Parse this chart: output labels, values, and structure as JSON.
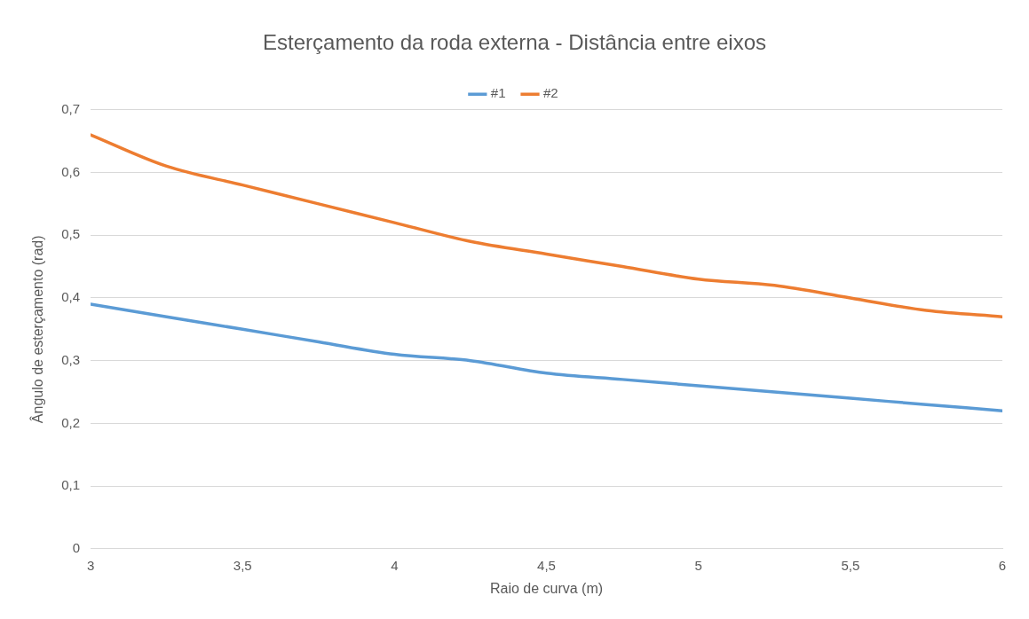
{
  "chart_data": {
    "type": "line",
    "title": "Esterçamento da roda externa - Distância entre eixos",
    "xlabel": "Raio de curva (m)",
    "ylabel": "Ângulo de esterçamento (rad)",
    "x": [
      3,
      3.25,
      3.5,
      3.75,
      4,
      4.25,
      4.5,
      4.75,
      5,
      5.25,
      5.5,
      5.75,
      6
    ],
    "series": [
      {
        "name": "#1",
        "color": "#5b9bd5",
        "values": [
          0.39,
          0.37,
          0.35,
          0.33,
          0.31,
          0.3,
          0.28,
          0.27,
          0.26,
          0.25,
          0.24,
          0.23,
          0.22
        ]
      },
      {
        "name": "#2",
        "color": "#ed7d31",
        "values": [
          0.66,
          0.61,
          0.58,
          0.55,
          0.52,
          0.49,
          0.47,
          0.45,
          0.43,
          0.42,
          0.4,
          0.38,
          0.37
        ]
      }
    ],
    "xlim": [
      3,
      6
    ],
    "xticks": [
      3,
      {
        "value": 3.5,
        "label": "3,5"
      },
      4,
      {
        "value": 4.5,
        "label": "4,5"
      },
      5,
      {
        "value": 5.5,
        "label": "5,5"
      },
      6
    ],
    "ylim": [
      0,
      0.7
    ],
    "yticks": [
      0,
      {
        "value": 0.1,
        "label": "0,1"
      },
      {
        "value": 0.2,
        "label": "0,2"
      },
      {
        "value": 0.3,
        "label": "0,3"
      },
      {
        "value": 0.4,
        "label": "0,4"
      },
      {
        "value": 0.5,
        "label": "0,5"
      },
      {
        "value": 0.6,
        "label": "0,6"
      },
      {
        "value": 0.7,
        "label": "0,7"
      }
    ],
    "grid": "y",
    "legend": "top"
  }
}
